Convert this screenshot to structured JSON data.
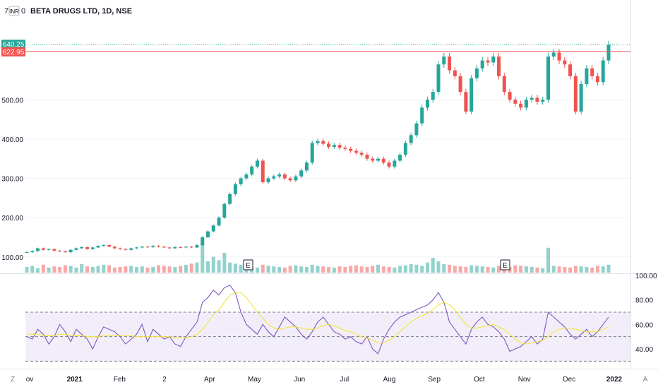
{
  "header": {
    "inr_badge": "INR",
    "symbol_title": "BETA DRUGS LTD, 1D, NSE",
    "partial_left_glyphs": "7",
    "partial_right_glyph": "0"
  },
  "price_tags": {
    "last_price": "640.25",
    "level_price": "622.95",
    "last_color": "#26a69a",
    "level_color": "#ef5350"
  },
  "colors": {
    "up": "#26a69a",
    "down": "#ef5350",
    "rsi_line": "#7e57c2",
    "rsi_ma": "#f5e32a",
    "rsi_band": "#ede7f6",
    "grid": "#f0f3fa"
  },
  "bottom_axis": {
    "left_button": "Z",
    "right_button": "A",
    "months": [
      "ov",
      "2021",
      "Feb",
      "2",
      "Apr",
      "May",
      "Jun",
      "Jul",
      "Aug",
      "Sep",
      "Oct",
      "Nov",
      "Dec",
      "2022"
    ]
  },
  "earnings_markers": [
    "E",
    "E"
  ],
  "chart_data": [
    {
      "type": "candlestick",
      "title": "BETA DRUGS LTD, 1D, NSE",
      "y_ticks": [
        "100.00",
        "200.00",
        "300.00",
        "400.00",
        "500.00"
      ],
      "ylim": [
        60,
        700
      ],
      "level_line": 622.95,
      "last_price": 640.25,
      "note_series": "approximate closes, one point per ~3 trading days, Nov 2020 → Dec 2021",
      "close": [
        112,
        115,
        122,
        118,
        120,
        116,
        114,
        112,
        118,
        122,
        125,
        120,
        124,
        128,
        130,
        126,
        122,
        120,
        118,
        122,
        124,
        126,
        125,
        128,
        126,
        124,
        122,
        125,
        124,
        126,
        124,
        130,
        150,
        165,
        180,
        200,
        235,
        260,
        285,
        300,
        310,
        330,
        345,
        290,
        300,
        305,
        310,
        300,
        295,
        305,
        320,
        340,
        390,
        395,
        388,
        380,
        385,
        378,
        375,
        370,
        365,
        360,
        350,
        345,
        350,
        340,
        330,
        345,
        360,
        390,
        410,
        440,
        480,
        500,
        520,
        590,
        610,
        575,
        560,
        520,
        470,
        555,
        580,
        600,
        595,
        610,
        560,
        520,
        500,
        490,
        480,
        500,
        505,
        495,
        500,
        610,
        620,
        600,
        590,
        560,
        470,
        540,
        580,
        560,
        545,
        600,
        640.25
      ],
      "volume": [
        10,
        12,
        8,
        14,
        9,
        11,
        10,
        13,
        12,
        9,
        15,
        11,
        10,
        12,
        14,
        13,
        9,
        10,
        11,
        12,
        10,
        11,
        9,
        10,
        13,
        12,
        11,
        10,
        12,
        14,
        16,
        18,
        50,
        20,
        28,
        22,
        35,
        18,
        16,
        14,
        12,
        10,
        9,
        14,
        12,
        11,
        10,
        9,
        12,
        13,
        11,
        10,
        14,
        12,
        11,
        10,
        9,
        11,
        10,
        12,
        13,
        11,
        10,
        12,
        14,
        11,
        10,
        9,
        12,
        13,
        15,
        14,
        12,
        18,
        26,
        20,
        15,
        14,
        12,
        11,
        10,
        13,
        12,
        11,
        10,
        9,
        12,
        11,
        10,
        13,
        12,
        11,
        10,
        9,
        8,
        44,
        12,
        11,
        10,
        9,
        12,
        11,
        10,
        9,
        12,
        11,
        14
      ]
    },
    {
      "type": "line",
      "title": "",
      "y_ticks": [
        "100.00",
        "80.00",
        "60.00",
        "40.00"
      ],
      "ylim": [
        25,
        100
      ],
      "bands": [
        70,
        50,
        30
      ],
      "series": [
        {
          "values": [
            50,
            48,
            56,
            52,
            44,
            50,
            60,
            54,
            46,
            56,
            52,
            48,
            40,
            50,
            58,
            56,
            54,
            50,
            44,
            48,
            52,
            60,
            46,
            56,
            52,
            48,
            50,
            44,
            42,
            50,
            56,
            62,
            78,
            82,
            88,
            84,
            90,
            92,
            86,
            70,
            60,
            56,
            52,
            60,
            54,
            50,
            58,
            66,
            62,
            58,
            52,
            48,
            54,
            62,
            66,
            60,
            54,
            52,
            48,
            50,
            46,
            44,
            50,
            40,
            36,
            48,
            56,
            62,
            66,
            68,
            70,
            72,
            74,
            76,
            80,
            86,
            78,
            62,
            56,
            50,
            44,
            56,
            62,
            66,
            60,
            58,
            54,
            48,
            38,
            40,
            42,
            46,
            50,
            44,
            48,
            70,
            66,
            62,
            58,
            52,
            48,
            52,
            56,
            50,
            54,
            60,
            66
          ]
        },
        {
          "values": [
            52,
            52,
            52,
            51,
            51,
            51,
            52,
            52,
            51,
            51,
            51,
            50,
            50,
            50,
            51,
            51,
            51,
            51,
            51,
            51,
            50,
            50,
            50,
            50,
            50,
            50,
            50,
            49,
            49,
            49,
            50,
            52,
            56,
            62,
            68,
            72,
            78,
            84,
            86,
            86,
            82,
            76,
            70,
            65,
            60,
            57,
            56,
            57,
            58,
            58,
            57,
            56,
            56,
            57,
            59,
            60,
            59,
            57,
            55,
            54,
            52,
            50,
            49,
            47,
            45,
            45,
            47,
            50,
            54,
            58,
            62,
            65,
            67,
            69,
            72,
            76,
            78,
            76,
            72,
            66,
            60,
            57,
            57,
            58,
            59,
            60,
            58,
            56,
            52,
            48,
            45,
            44,
            45,
            46,
            47,
            50,
            54,
            56,
            57,
            57,
            56,
            55,
            54,
            54,
            54,
            56,
            58
          ]
        }
      ]
    }
  ]
}
